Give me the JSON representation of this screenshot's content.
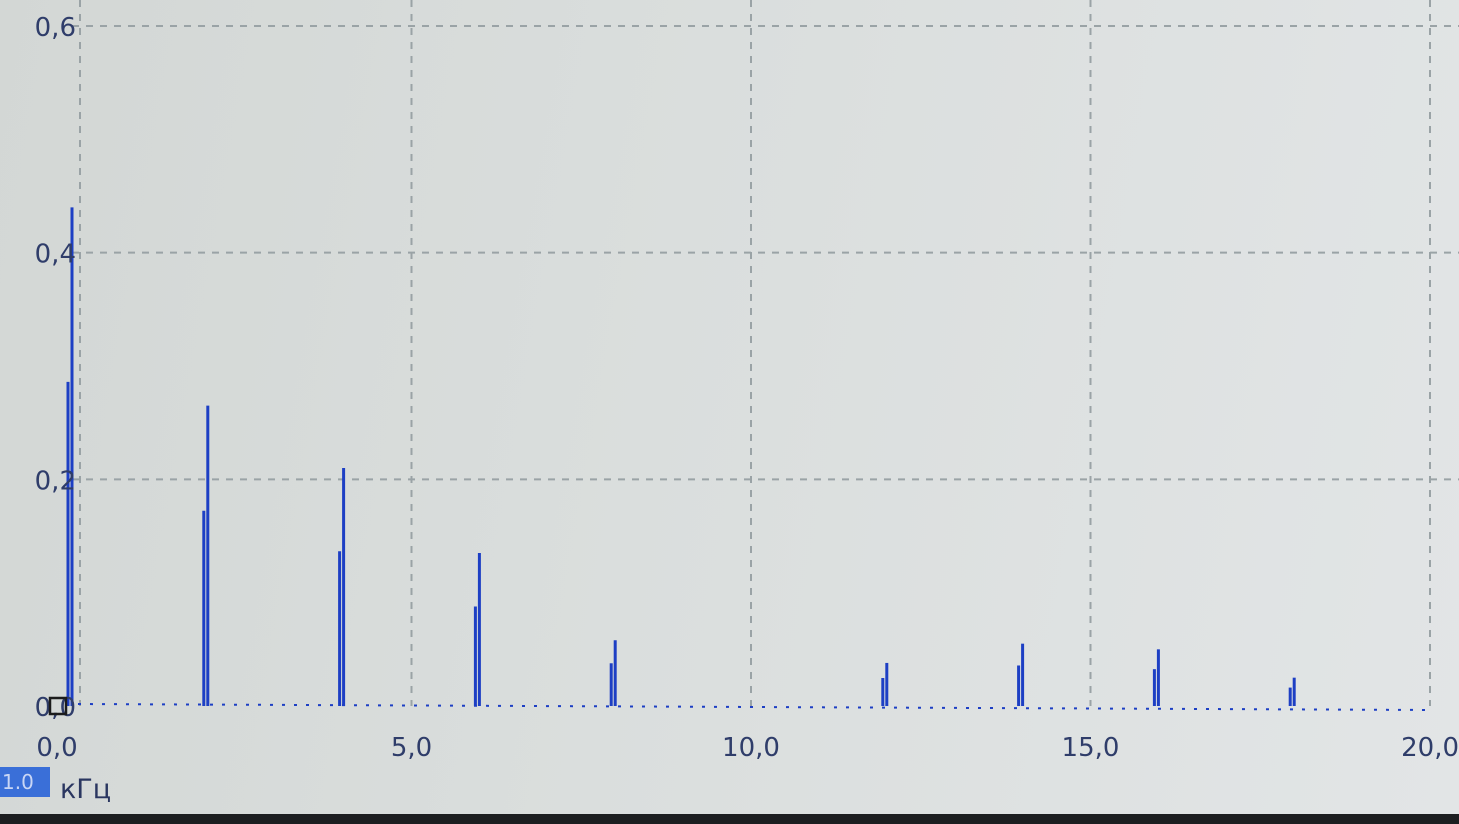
{
  "chart_data": {
    "type": "bar",
    "title": "",
    "xlabel": "кГц",
    "ylabel": "",
    "xlim": [
      0,
      20
    ],
    "ylim": [
      0,
      0.6
    ],
    "x_ticks": [
      "0,0",
      "5,0",
      "10,0",
      "15,0",
      "20,0"
    ],
    "x_tick_values": [
      0,
      5,
      10,
      15,
      20
    ],
    "y_ticks": [
      "0,0",
      "0,2",
      "0,4",
      "0,6"
    ],
    "y_tick_values": [
      0,
      0.2,
      0.4,
      0.6
    ],
    "grid": true,
    "legend": "none",
    "series_color": "#1d3fc4",
    "x": [
      0.0,
      2.0,
      4.0,
      6.0,
      8.0,
      12.0,
      14.0,
      16.0,
      18.0
    ],
    "values": [
      0.44,
      0.265,
      0.21,
      0.135,
      0.058,
      0.038,
      0.055,
      0.05,
      0.025
    ]
  },
  "ui": {
    "scale_badge": "1.0"
  }
}
